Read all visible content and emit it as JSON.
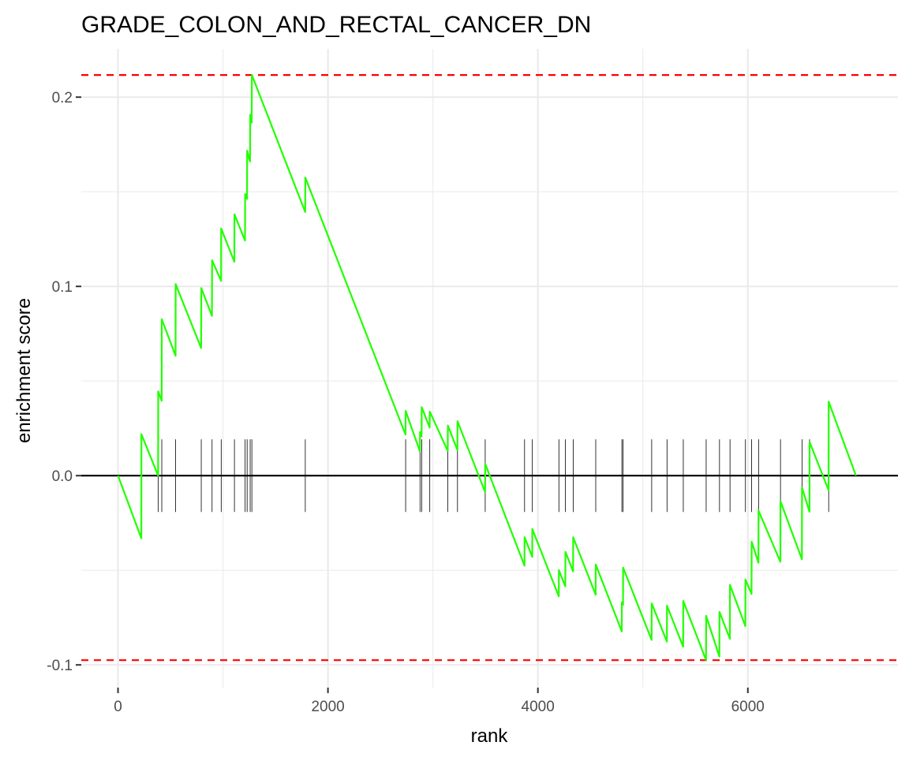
{
  "chart_data": {
    "type": "line",
    "title": "GRADE_COLON_AND_RECTAL_CANCER_DN",
    "xlabel": "rank",
    "ylabel": "enrichment score",
    "xlim": [
      -350,
      7430
    ],
    "ylim": [
      -0.112,
      0.2255
    ],
    "xticks": [
      0,
      2000,
      4000,
      6000
    ],
    "xtick_labels": [
      "0",
      "2000",
      "4000",
      "6000"
    ],
    "yticks": [
      -0.1,
      0.0,
      0.1,
      0.2
    ],
    "ytick_labels": [
      "-0.1",
      "0.0",
      "0.1",
      "0.2"
    ],
    "grid": true,
    "colors": {
      "line": "#22ff00",
      "threshold": "#ff0000",
      "zero": "#000000",
      "ticks": "#000000"
    },
    "thresholds": [
      0.2117,
      -0.0975
    ],
    "hit_ranks": [
      223,
      382,
      417,
      549,
      793,
      896,
      983,
      1109,
      1211,
      1230,
      1259,
      1275,
      1784,
      2740,
      2877,
      2893,
      2970,
      3142,
      3234,
      3498,
      3873,
      3947,
      4200,
      4262,
      4336,
      4551,
      4800,
      4812,
      5084,
      5230,
      5385,
      5603,
      5730,
      5830,
      5977,
      6036,
      6102,
      6311,
      6516,
      6588,
      6770
    ],
    "series": [
      {
        "x": [
          0,
          222,
          223,
          382,
          383,
          416,
          417,
          548,
          549,
          792,
          793,
          895,
          896,
          982,
          983,
          1108,
          1109,
          1210,
          1211,
          1229,
          1230,
          1258,
          1259,
          1274,
          1275,
          1783,
          1784,
          2739,
          2740,
          2876,
          2877,
          2892,
          2893,
          2969,
          2970,
          3141,
          3142,
          3233,
          3234,
          3497,
          3498,
          3872,
          3873,
          3946,
          3947,
          4199,
          4200,
          4261,
          4262,
          4335,
          4336,
          4550,
          4551,
          4799,
          4800,
          4811,
          4812,
          5083,
          5084,
          5229,
          5230,
          5384,
          5385,
          5602,
          5603,
          5729,
          5730,
          5829,
          5830,
          5976,
          5977,
          6035,
          6036,
          6101,
          6102,
          6310,
          6311,
          6515,
          6516,
          6587,
          6588,
          6769,
          6770,
          7030
        ],
        "y": [
          0.0,
          -0.0331,
          0.0219,
          0.0,
          0.0445,
          0.0396,
          0.0827,
          0.0633,
          0.1012,
          0.0674,
          0.0991,
          0.0844,
          0.1138,
          0.1029,
          0.1306,
          0.113,
          0.1381,
          0.1242,
          0.1488,
          0.1462,
          0.1717,
          0.166,
          0.1907,
          0.1865,
          0.2117,
          0.1393,
          0.1575,
          0.0217,
          0.0342,
          0.0128,
          0.0231,
          0.0208,
          0.0362,
          0.0254,
          0.0338,
          0.0131,
          0.0265,
          0.0135,
          0.0288,
          -0.0087,
          0.0062,
          -0.0476,
          -0.0325,
          -0.0429,
          -0.0282,
          -0.0638,
          -0.0499,
          -0.0585,
          -0.0403,
          -0.0506,
          -0.0326,
          -0.0629,
          -0.047,
          -0.0823,
          -0.067,
          -0.0683,
          -0.0486,
          -0.0868,
          -0.0675,
          -0.0877,
          -0.0687,
          -0.0904,
          -0.0662,
          -0.0975,
          -0.0741,
          -0.0956,
          -0.072,
          -0.0862,
          -0.0577,
          -0.0795,
          -0.0549,
          -0.0625,
          -0.0349,
          -0.046,
          -0.0185,
          -0.0455,
          -0.0135,
          -0.0442,
          -0.0063,
          -0.0191,
          0.0178,
          -0.0077,
          0.0391,
          0.0
        ]
      }
    ]
  }
}
